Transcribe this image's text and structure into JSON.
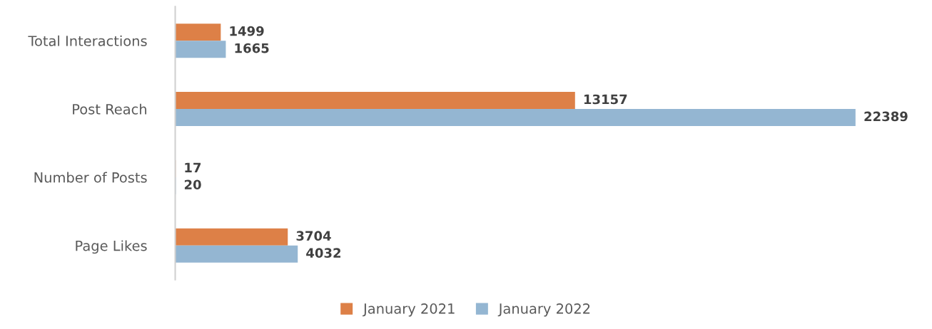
{
  "chart_data": {
    "type": "bar",
    "orientation": "horizontal",
    "categories": [
      "Total Interactions",
      "Post Reach",
      "Number of Posts",
      "Page Likes"
    ],
    "series": [
      {
        "name": "January 2021",
        "color": "#dd8047",
        "values": [
          1499,
          13157,
          17,
          3704
        ]
      },
      {
        "name": "January 2022",
        "color": "#94b6d2",
        "values": [
          1665,
          22389,
          20,
          4032
        ]
      }
    ],
    "data_labels": true,
    "grid": false,
    "legend": "bottom"
  }
}
